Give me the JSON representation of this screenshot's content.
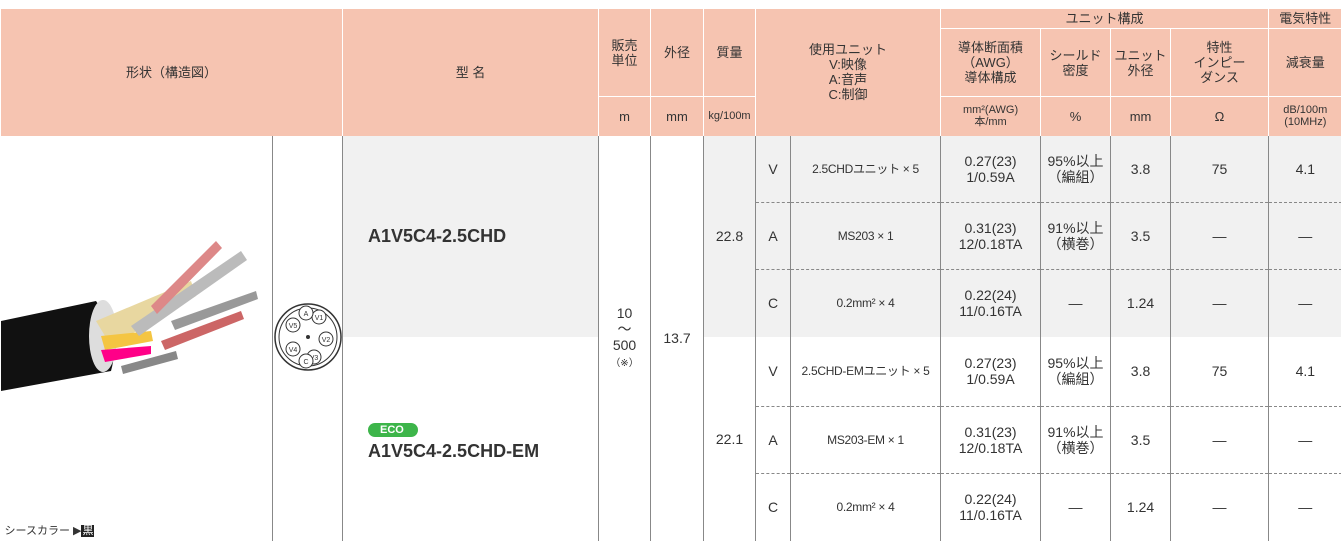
{
  "header": {
    "shape": "形状（構造図）",
    "model": "型 名",
    "sales_unit": "販売\n単位",
    "outer_diameter": "外径",
    "mass": "質量",
    "used_unit": "使用ユニット\nV:映像\nA:音声\nC:制御",
    "group_unit": "ユニット構成",
    "group_electric": "電気特性",
    "conductor": "導体断面積\n（AWG）\n導体構成",
    "shield": "シールド\n密度",
    "unit_od": "ユニット\n外径",
    "impedance": "特性\nインピー\nダンス",
    "attenuation": "減衰量",
    "units": {
      "sales_unit": "m",
      "outer_diameter": "mm",
      "mass": "kg/100m",
      "conductor": "mm²(AWG)\n本/mm",
      "shield": "%",
      "unit_od": "mm",
      "impedance": "Ω",
      "attenuation": "dB/100m\n(10MHz)"
    }
  },
  "sheath_label": "シースカラー ▶",
  "sheath_color": "黒",
  "cross_section_labels": [
    "V1",
    "V2",
    "V3",
    "V4",
    "V5",
    "A",
    "C"
  ],
  "sales_unit": "10\n〜\n500",
  "sales_note": "（※）",
  "outer_diameter": "13.7",
  "products": [
    {
      "model": "A1V5C4-2.5CHD",
      "mass": "22.8",
      "units": [
        {
          "type": "V",
          "composition": "2.5CHDユニット × 5",
          "conductor": "0.27(23)\n1/0.59A",
          "shield": "95%以上\n（編組）",
          "unit_od": "3.8",
          "impedance": "75",
          "attenuation": "4.1"
        },
        {
          "type": "A",
          "composition": "MS203 × 1",
          "conductor": "0.31(23)\n12/0.18TA",
          "shield": "91%以上\n（横巻）",
          "unit_od": "3.5",
          "impedance": "—",
          "attenuation": "—"
        },
        {
          "type": "C",
          "composition": "0.2mm² × 4",
          "conductor": "0.22(24)\n11/0.16TA",
          "shield": "—",
          "unit_od": "1.24",
          "impedance": "—",
          "attenuation": "—"
        }
      ]
    },
    {
      "badge": "ECO",
      "model": "A1V5C4-2.5CHD-EM",
      "mass": "22.1",
      "units": [
        {
          "type": "V",
          "composition": "2.5CHD-EMユニット × 5",
          "conductor": "0.27(23)\n1/0.59A",
          "shield": "95%以上\n（編組）",
          "unit_od": "3.8",
          "impedance": "75",
          "attenuation": "4.1"
        },
        {
          "type": "A",
          "composition": "MS203-EM × 1",
          "conductor": "0.31(23)\n12/0.18TA",
          "shield": "91%以上\n（横巻）",
          "unit_od": "3.5",
          "impedance": "—",
          "attenuation": "—"
        },
        {
          "type": "C",
          "composition": "0.2mm² × 4",
          "conductor": "0.22(24)\n11/0.16TA",
          "shield": "—",
          "unit_od": "1.24",
          "impedance": "—",
          "attenuation": "—"
        }
      ]
    }
  ]
}
